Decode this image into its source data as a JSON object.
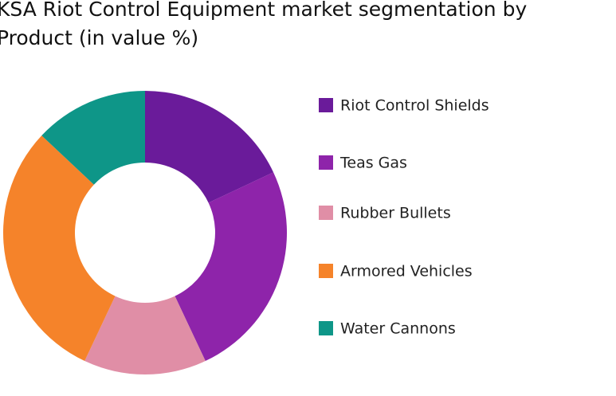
{
  "chart_data": {
    "type": "donut",
    "title": "KSA Riot Control Equipment market segmentation by Product (in value %)",
    "categories": [
      "Riot Control Shields",
      "Teas Gas",
      "Rubber Bullets",
      "Armored Vehicles",
      "Water Cannons"
    ],
    "values": [
      18,
      25,
      14,
      30,
      13
    ],
    "colors": [
      "#6a1b9a",
      "#8e24aa",
      "#e08ea6",
      "#f5832a",
      "#0e9688"
    ],
    "legend": "right"
  }
}
